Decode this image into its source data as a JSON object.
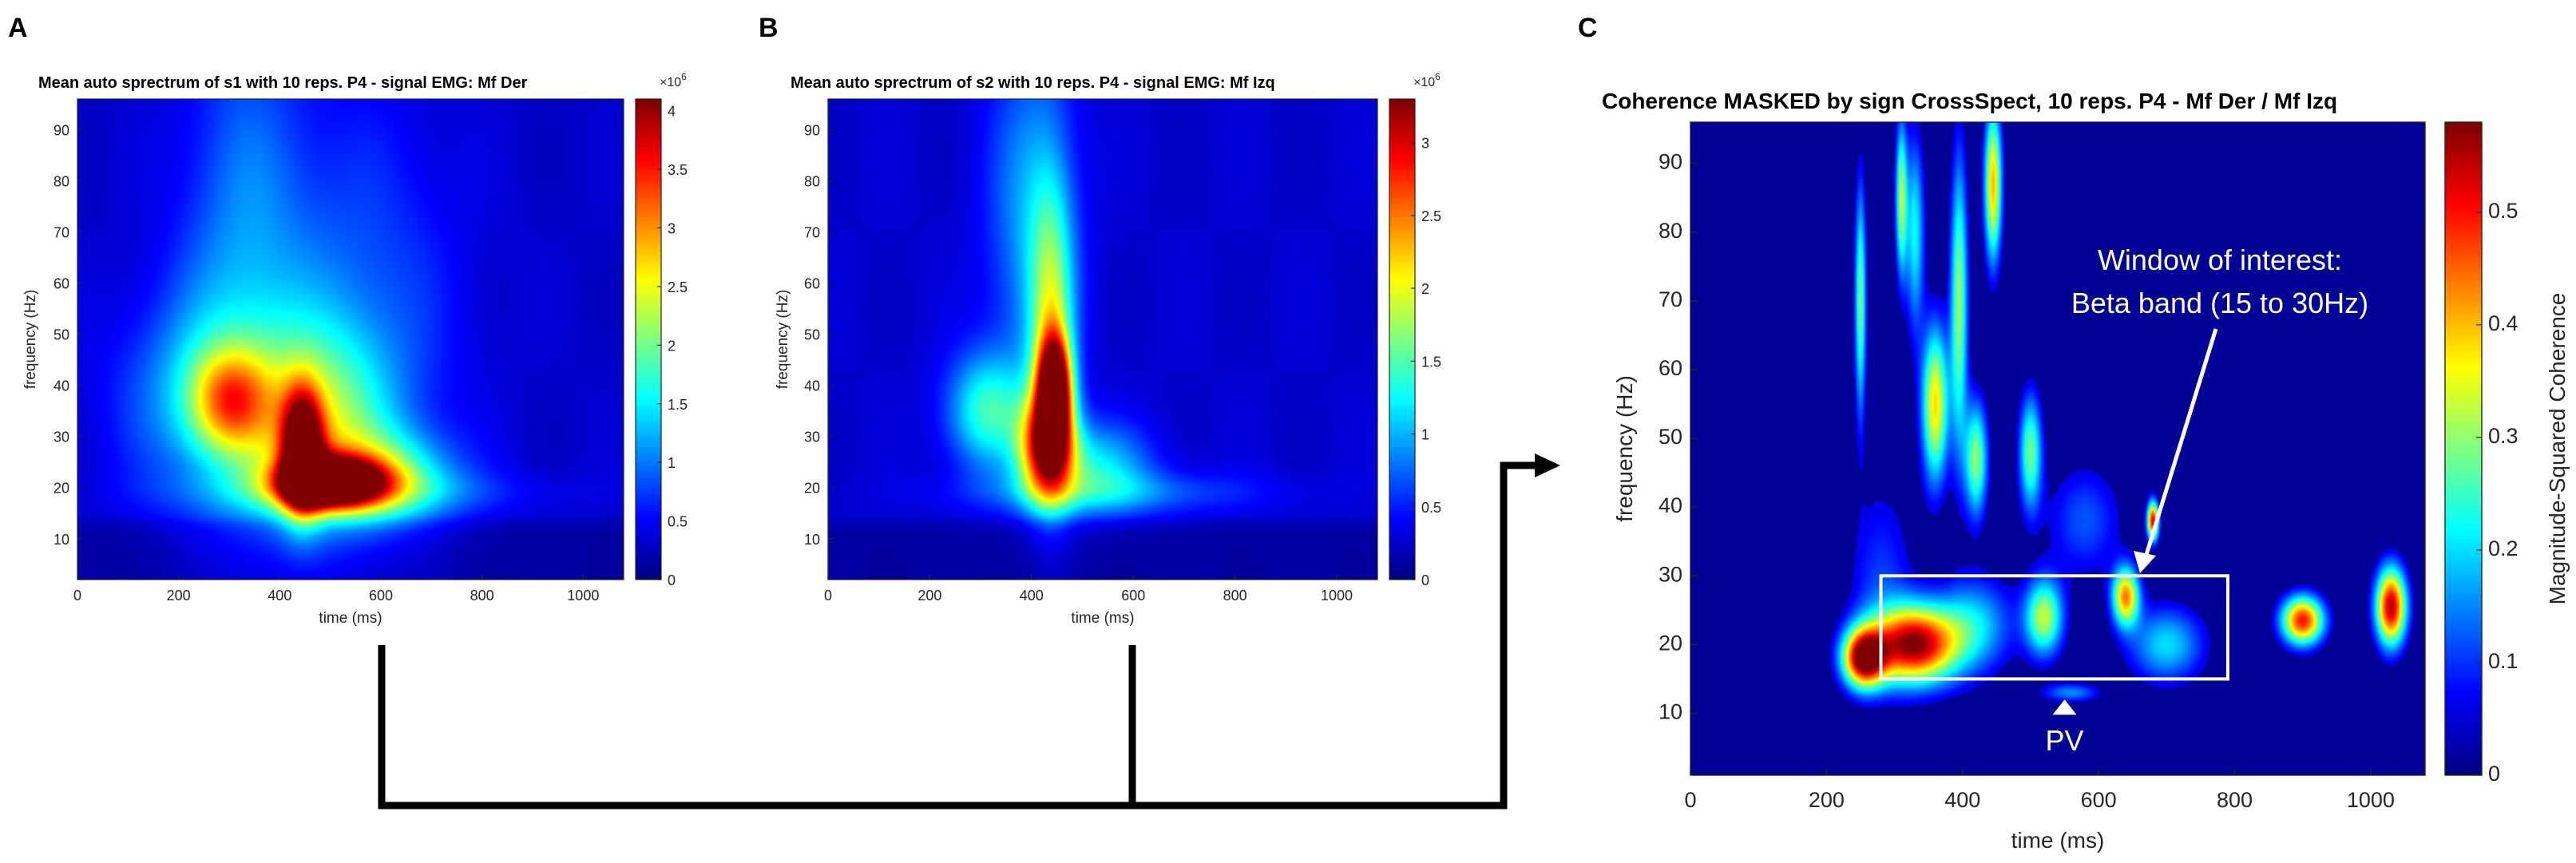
{
  "chart_data": [
    {
      "panel": "A",
      "type": "heatmap",
      "title": "Mean auto sprectrum of s1 with 10 reps. P4 - signal EMG: Mf Der",
      "xlabel": "time (ms)",
      "ylabel": "frequency (Hz)",
      "xlim": [
        0,
        1080
      ],
      "ylim": [
        2,
        96
      ],
      "xticks": [
        0,
        200,
        400,
        600,
        800,
        1000
      ],
      "yticks": [
        10,
        20,
        30,
        40,
        50,
        60,
        70,
        80,
        90
      ],
      "colorbar": {
        "min": 0,
        "max": 4.1,
        "ticks": [
          0,
          0.5,
          1,
          1.5,
          2,
          2.5,
          3,
          3.5,
          4
        ],
        "tick_labels": [
          "0",
          "0.5",
          "1",
          "1.5",
          "2",
          "2.5",
          "3",
          "3.5",
          "4"
        ],
        "multiplier": "×10",
        "exponent": "6"
      },
      "blobs": [
        {
          "t": 500,
          "f": 21,
          "st": 70,
          "sf": 3.2,
          "v": 4.0
        },
        {
          "t": 445,
          "f": 27,
          "st": 28,
          "sf": 8,
          "v": 3.3
        },
        {
          "t": 300,
          "f": 37,
          "st": 55,
          "sf": 7,
          "v": 1.7
        },
        {
          "t": 470,
          "f": 32,
          "st": 95,
          "sf": 13,
          "v": 1.6
        },
        {
          "t": 600,
          "f": 22,
          "st": 100,
          "sf": 6,
          "v": 1.4
        },
        {
          "t": 330,
          "f": 62,
          "st": 90,
          "sf": 35,
          "v": 0.75
        },
        {
          "t": 560,
          "f": 50,
          "st": 130,
          "sf": 30,
          "v": 0.6
        },
        {
          "t": 230,
          "f": 38,
          "st": 110,
          "sf": 14,
          "v": 0.8
        },
        {
          "t": 550,
          "f": 19,
          "st": 250,
          "sf": 3,
          "v": 0.45
        }
      ],
      "baseline": 0.35,
      "low_cut_hz": 15
    },
    {
      "panel": "B",
      "type": "heatmap",
      "title": "Mean auto sprectrum of s2 with 10 reps. P4 - signal EMG: Mf Izq",
      "xlabel": "time (ms)",
      "ylabel": "frequency (Hz)",
      "xlim": [
        0,
        1080
      ],
      "ylim": [
        2,
        96
      ],
      "xticks": [
        0,
        200,
        400,
        600,
        800,
        1000
      ],
      "yticks": [
        10,
        20,
        30,
        40,
        50,
        60,
        70,
        80,
        90
      ],
      "colorbar": {
        "min": 0,
        "max": 3.3,
        "ticks": [
          0,
          0.5,
          1,
          1.5,
          2,
          2.5,
          3
        ],
        "tick_labels": [
          "0",
          "0.5",
          "1",
          "1.5",
          "2",
          "2.5",
          "3"
        ],
        "multiplier": "×10",
        "exponent": "6"
      },
      "blobs": [
        {
          "t": 445,
          "f": 39,
          "st": 22,
          "sf": 7,
          "v": 3.2
        },
        {
          "t": 430,
          "f": 28,
          "st": 38,
          "sf": 7,
          "v": 2.3
        },
        {
          "t": 440,
          "f": 50,
          "st": 30,
          "sf": 20,
          "v": 1.3
        },
        {
          "t": 310,
          "f": 35,
          "st": 55,
          "sf": 8,
          "v": 1.1
        },
        {
          "t": 520,
          "f": 24,
          "st": 80,
          "sf": 6,
          "v": 0.9
        },
        {
          "t": 400,
          "f": 72,
          "st": 60,
          "sf": 25,
          "v": 0.7
        },
        {
          "t": 560,
          "f": 19,
          "st": 200,
          "sf": 3,
          "v": 0.5
        }
      ],
      "baseline": 0.3,
      "low_cut_hz": 15
    },
    {
      "panel": "C",
      "type": "heatmap",
      "title": "Coherence MASKED by sign CrossSpect, 10 reps. P4 - Mf Der / Mf Izq",
      "xlabel": "time (ms)",
      "ylabel": "frequency (Hz)",
      "xlim": [
        0,
        1080
      ],
      "ylim": [
        1,
        96
      ],
      "xticks": [
        0,
        200,
        400,
        600,
        800,
        1000
      ],
      "yticks": [
        10,
        20,
        30,
        40,
        50,
        60,
        70,
        80,
        90
      ],
      "colorbar": {
        "min": 0,
        "max": 0.58,
        "ticks": [
          0,
          0.1,
          0.2,
          0.3,
          0.4,
          0.5
        ],
        "tick_labels": [
          "0",
          "0.1",
          "0.2",
          "0.3",
          "0.4",
          "0.5"
        ],
        "label": "Magnitude-Squared Coherence"
      },
      "blobs": [
        {
          "t": 330,
          "f": 20,
          "st": 45,
          "sf": 4,
          "v": 0.56
        },
        {
          "t": 255,
          "f": 18,
          "st": 22,
          "sf": 3,
          "v": 0.55
        },
        {
          "t": 900,
          "f": 23.5,
          "st": 22,
          "sf": 2.5,
          "v": 0.5
        },
        {
          "t": 1030,
          "f": 25.5,
          "st": 16,
          "sf": 4,
          "v": 0.55
        },
        {
          "t": 640,
          "f": 27,
          "st": 14,
          "sf": 3,
          "v": 0.42
        },
        {
          "t": 680,
          "f": 38,
          "st": 6,
          "sf": 2,
          "v": 0.52
        },
        {
          "t": 360,
          "f": 55,
          "st": 14,
          "sf": 8,
          "v": 0.38
        },
        {
          "t": 420,
          "f": 47,
          "st": 12,
          "sf": 6,
          "v": 0.3
        },
        {
          "t": 330,
          "f": 80,
          "st": 10,
          "sf": 10,
          "v": 0.22
        },
        {
          "t": 395,
          "f": 70,
          "st": 9,
          "sf": 15,
          "v": 0.3
        },
        {
          "t": 445,
          "f": 87,
          "st": 9,
          "sf": 8,
          "v": 0.4
        },
        {
          "t": 500,
          "f": 48,
          "st": 12,
          "sf": 6,
          "v": 0.28
        },
        {
          "t": 520,
          "f": 24,
          "st": 20,
          "sf": 4,
          "v": 0.32
        },
        {
          "t": 420,
          "f": 23,
          "st": 40,
          "sf": 5,
          "v": 0.18
        },
        {
          "t": 580,
          "f": 38,
          "st": 40,
          "sf": 6,
          "v": 0.12
        },
        {
          "t": 700,
          "f": 20,
          "st": 40,
          "sf": 4,
          "v": 0.2
        },
        {
          "t": 280,
          "f": 30,
          "st": 35,
          "sf": 10,
          "v": 0.1
        },
        {
          "t": 250,
          "f": 70,
          "st": 6,
          "sf": 12,
          "v": 0.28
        },
        {
          "t": 310,
          "f": 85,
          "st": 6,
          "sf": 8,
          "v": 0.3
        },
        {
          "t": 560,
          "f": 13,
          "st": 30,
          "sf": 1,
          "v": 0.15
        }
      ],
      "mask_threshold": 0.055,
      "window_of_interest": {
        "t_start": 280,
        "t_end": 790,
        "f_low": 15,
        "f_high": 30
      },
      "annotations": [
        {
          "text_line1": "Window of interest:",
          "text_line2": "Beta band (15 to 30Hz)"
        },
        {
          "text": "PV",
          "t": 550
        }
      ]
    }
  ]
}
